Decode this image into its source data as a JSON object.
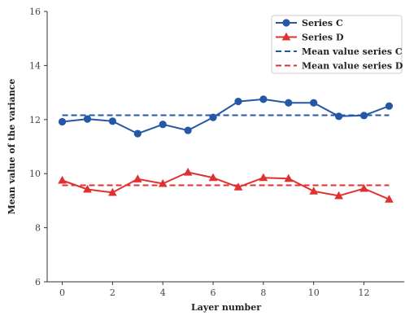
{
  "chart_data": {
    "type": "line",
    "title": "",
    "xlabel": "Layer number",
    "ylabel": "Mean value of the variance",
    "xlim": [
      -0.6,
      13.6
    ],
    "ylim": [
      6,
      16
    ],
    "xticks": [
      0,
      2,
      4,
      6,
      8,
      10,
      12
    ],
    "yticks": [
      6,
      8,
      10,
      12,
      14,
      16
    ],
    "grid": false,
    "legend_position": "top-right",
    "x": [
      0,
      1,
      2,
      3,
      4,
      5,
      6,
      7,
      8,
      9,
      10,
      11,
      12,
      13
    ],
    "series": [
      {
        "name": "Series C",
        "marker": "circle",
        "color": "#2457a5",
        "values": [
          11.92,
          12.02,
          11.94,
          11.48,
          11.82,
          11.6,
          12.08,
          12.67,
          12.75,
          12.62,
          12.62,
          12.12,
          12.15,
          12.5
        ]
      },
      {
        "name": "Series D",
        "marker": "triangle",
        "color": "#e03131",
        "values": [
          9.75,
          9.42,
          9.3,
          9.8,
          9.63,
          10.05,
          9.85,
          9.5,
          9.85,
          9.82,
          9.35,
          9.18,
          9.45,
          9.05
        ]
      }
    ],
    "reference_lines": [
      {
        "name": "Mean value series C",
        "y": 12.16,
        "color": "#2457a5",
        "style": "dashed"
      },
      {
        "name": "Mean value series D",
        "y": 9.57,
        "color": "#e03131",
        "style": "dashed"
      }
    ]
  }
}
